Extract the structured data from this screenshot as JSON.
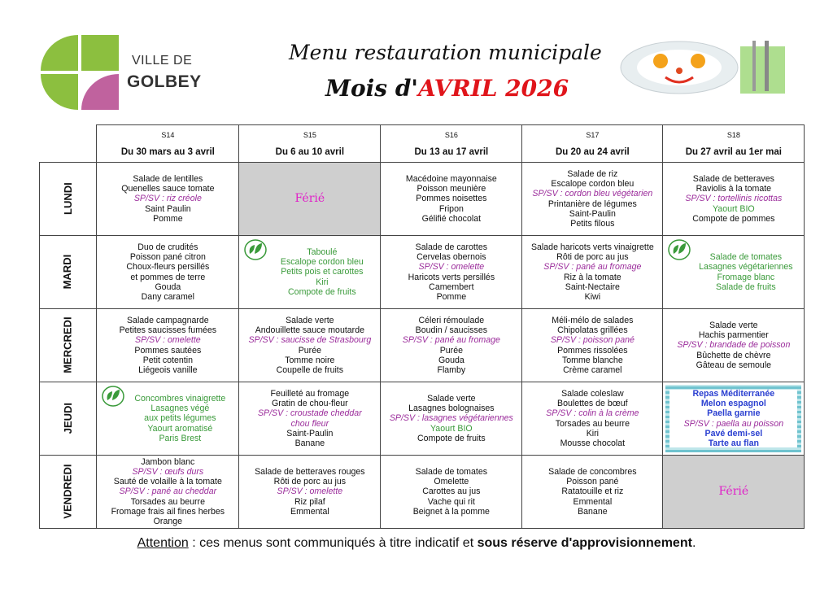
{
  "header": {
    "logo_line1": "VILLE DE",
    "logo_line2": "GOLBEY",
    "title": "Menu restauration municipale",
    "subtitle_prefix": "Mois d'",
    "subtitle_month": "AVRIL 2026"
  },
  "colors": {
    "green": "#8cbf3f",
    "pink": "#c0629e",
    "alt": "#9b2c9b",
    "vege": "#3a9a3a",
    "ferie_bg": "#cfcfcf",
    "ferie_text": "#e020c8",
    "title_red": "#e0151b"
  },
  "weeks": [
    {
      "code": "S14",
      "dates": "Du 30 mars au 3 avril"
    },
    {
      "code": "S15",
      "dates": "Du 6 au 10 avril"
    },
    {
      "code": "S16",
      "dates": "Du 13 au 17 avril"
    },
    {
      "code": "S17",
      "dates": "Du 20 au 24 avril"
    },
    {
      "code": "S18",
      "dates": "Du 27 avril au 1er mai"
    }
  ],
  "days": [
    {
      "name": "LUNDI",
      "cells": [
        {
          "lines": [
            [
              "Salade de lentilles",
              ""
            ],
            [
              "Quenelles sauce tomate",
              ""
            ],
            [
              "SP/SV : riz créole",
              "alt"
            ],
            [
              "Saint Paulin",
              ""
            ],
            [
              "Pomme",
              ""
            ]
          ]
        },
        {
          "ferie": "Férié"
        },
        {
          "lines": [
            [
              "Macédoine mayonnaise",
              ""
            ],
            [
              "Poisson meunière",
              ""
            ],
            [
              "Pommes noisettes",
              ""
            ],
            [
              "Fripon",
              ""
            ],
            [
              "Gélifié chocolat",
              ""
            ]
          ]
        },
        {
          "lines": [
            [
              "Salade de riz",
              ""
            ],
            [
              "Escalope cordon bleu",
              ""
            ],
            [
              "SP/SV : cordon bleu végétarien",
              "alt"
            ],
            [
              "Printanière de légumes",
              ""
            ],
            [
              "Saint-Paulin",
              ""
            ],
            [
              "Petits filous",
              ""
            ]
          ]
        },
        {
          "lines": [
            [
              "Salade de betteraves",
              ""
            ],
            [
              "Raviolis à la tomate",
              ""
            ],
            [
              "SP/SV : tortellinis ricottas",
              "alt"
            ],
            [
              "Yaourt BIO",
              "vege"
            ],
            [
              "Compote de pommes",
              ""
            ]
          ]
        }
      ]
    },
    {
      "name": "MARDI",
      "cells": [
        {
          "lines": [
            [
              "Duo de crudités",
              ""
            ],
            [
              "Poisson pané citron",
              ""
            ],
            [
              "Choux-fleurs persillés",
              ""
            ],
            [
              "et pommes de terre",
              ""
            ],
            [
              "Gouda",
              ""
            ],
            [
              "Dany caramel",
              ""
            ]
          ]
        },
        {
          "vege_icon": true,
          "lines": [
            [
              "Taboulé",
              "vege"
            ],
            [
              "Escalope cordon bleu",
              "vege"
            ],
            [
              "Petits pois et carottes",
              "vege"
            ],
            [
              "Kiri",
              "vege"
            ],
            [
              "Compote de fruits",
              "vege"
            ]
          ]
        },
        {
          "lines": [
            [
              "Salade de carottes",
              ""
            ],
            [
              "Cervelas obernois",
              ""
            ],
            [
              "SP/SV : omelette",
              "alt"
            ],
            [
              "Haricots verts persillés",
              ""
            ],
            [
              "Camembert",
              ""
            ],
            [
              "Pomme",
              ""
            ]
          ]
        },
        {
          "lines": [
            [
              "Salade haricots verts vinaigrette",
              ""
            ],
            [
              "Rôti de porc au jus",
              ""
            ],
            [
              "SP/SV : pané au fromage",
              "alt"
            ],
            [
              "Riz à la tomate",
              ""
            ],
            [
              "Saint-Nectaire",
              ""
            ],
            [
              "Kiwi",
              ""
            ]
          ]
        },
        {
          "vege_icon": true,
          "lines": [
            [
              "Salade de tomates",
              "vege"
            ],
            [
              "Lasagnes végétariennes",
              "vege"
            ],
            [
              "Fromage blanc",
              "vege"
            ],
            [
              "Salade de fruits",
              "vege"
            ]
          ]
        }
      ]
    },
    {
      "name": "MERCREDI",
      "cells": [
        {
          "lines": [
            [
              "Salade campagnarde",
              ""
            ],
            [
              "Petites saucisses fumées",
              ""
            ],
            [
              "SP/SV : omelette",
              "alt"
            ],
            [
              "Pommes sautées",
              ""
            ],
            [
              "Petit cotentin",
              ""
            ],
            [
              "Liégeois vanille",
              ""
            ]
          ]
        },
        {
          "lines": [
            [
              "Salade verte",
              ""
            ],
            [
              "Andouillette sauce moutarde",
              ""
            ],
            [
              "SP/SV : saucisse de Strasbourg",
              "alt"
            ],
            [
              "Purée",
              ""
            ],
            [
              "Tomme noire",
              ""
            ],
            [
              "Coupelle de fruits",
              ""
            ]
          ]
        },
        {
          "lines": [
            [
              "Céleri rémoulade",
              ""
            ],
            [
              "Boudin / saucisses",
              ""
            ],
            [
              "SP/SV : pané au fromage",
              "alt"
            ],
            [
              "Purée",
              ""
            ],
            [
              "Gouda",
              ""
            ],
            [
              "Flamby",
              ""
            ]
          ]
        },
        {
          "lines": [
            [
              "Méli-mélo de salades",
              ""
            ],
            [
              "Chipolatas grillées",
              ""
            ],
            [
              "SP/SV : poisson pané",
              "alt"
            ],
            [
              "Pommes rissolées",
              ""
            ],
            [
              "Tomme blanche",
              ""
            ],
            [
              "Crème caramel",
              ""
            ]
          ]
        },
        {
          "lines": [
            [
              "Salade verte",
              ""
            ],
            [
              "Hachis parmentier",
              ""
            ],
            [
              "SP/SV : brandade de poisson",
              "alt"
            ],
            [
              "Bûchette de chèvre",
              ""
            ],
            [
              "Gâteau de semoule",
              ""
            ]
          ]
        }
      ]
    },
    {
      "name": "JEUDI",
      "cells": [
        {
          "vege_icon": true,
          "lines": [
            [
              "Concombres vinaigrette",
              "vege"
            ],
            [
              "Lasagnes végé",
              "vege"
            ],
            [
              "aux petits légumes",
              "vege"
            ],
            [
              "Yaourt aromatisé",
              "vege"
            ],
            [
              "Paris Brest",
              "vege"
            ]
          ]
        },
        {
          "lines": [
            [
              "Feuilleté au fromage",
              ""
            ],
            [
              "Gratin de chou-fleur",
              ""
            ],
            [
              "SP/SV : croustade cheddar",
              "alt"
            ],
            [
              "chou fleur",
              "alt"
            ],
            [
              "Saint-Paulin",
              ""
            ],
            [
              "Banane",
              ""
            ]
          ]
        },
        {
          "lines": [
            [
              "Salade verte",
              ""
            ],
            [
              "Lasagnes bolognaises",
              ""
            ],
            [
              "SP/SV : lasagnes végétariennes",
              "alt"
            ],
            [
              "Yaourt BIO",
              "vege"
            ],
            [
              "Compote de fruits",
              ""
            ]
          ]
        },
        {
          "lines": [
            [
              "Salade coleslaw",
              ""
            ],
            [
              "Boulettes de bœuf",
              ""
            ],
            [
              "SP/SV : colin à la crème",
              "alt"
            ],
            [
              "Torsades au beurre",
              ""
            ],
            [
              "Kiri",
              ""
            ],
            [
              "Mousse chocolat",
              ""
            ]
          ]
        },
        {
          "themed": true,
          "lines": [
            [
              "Repas Méditerranée",
              "blue"
            ],
            [
              "Melon espagnol",
              "blue"
            ],
            [
              "Paella garnie",
              "blue"
            ],
            [
              "SP/SV : paella au poisson",
              "alt"
            ],
            [
              "Pavé demi-sel",
              "blue"
            ],
            [
              "Tarte au flan",
              "blue"
            ]
          ]
        }
      ]
    },
    {
      "name": "VENDREDI",
      "cells": [
        {
          "lines": [
            [
              "Jambon blanc",
              ""
            ],
            [
              "SP/SV : œufs durs",
              "alt"
            ],
            [
              "Sauté de volaille à la tomate",
              ""
            ],
            [
              "SP/SV : pané au cheddar",
              "alt"
            ],
            [
              "Torsades au beurre",
              ""
            ],
            [
              "Fromage frais ail fines herbes",
              ""
            ],
            [
              "Orange",
              ""
            ]
          ]
        },
        {
          "lines": [
            [
              "Salade de betteraves rouges",
              ""
            ],
            [
              "Rôti de porc au jus",
              ""
            ],
            [
              "SP/SV : omelette",
              "alt"
            ],
            [
              "Riz pilaf",
              ""
            ],
            [
              "Emmental",
              ""
            ]
          ]
        },
        {
          "lines": [
            [
              "Salade de tomates",
              ""
            ],
            [
              "Omelette",
              ""
            ],
            [
              "Carottes au jus",
              ""
            ],
            [
              "Vache qui rit",
              ""
            ],
            [
              "Beignet à la pomme",
              ""
            ]
          ]
        },
        {
          "lines": [
            [
              "Salade de concombres",
              ""
            ],
            [
              "Poisson pané",
              ""
            ],
            [
              "Ratatouille et riz",
              ""
            ],
            [
              "Emmental",
              ""
            ],
            [
              "Banane",
              ""
            ]
          ]
        },
        {
          "ferie": "Férié"
        }
      ]
    }
  ],
  "footer": {
    "attention": "Attention",
    "middle": " : ces menus sont communiqués à titre indicatif et ",
    "bold": "sous réserve d'approvisionnement",
    "end": "."
  }
}
